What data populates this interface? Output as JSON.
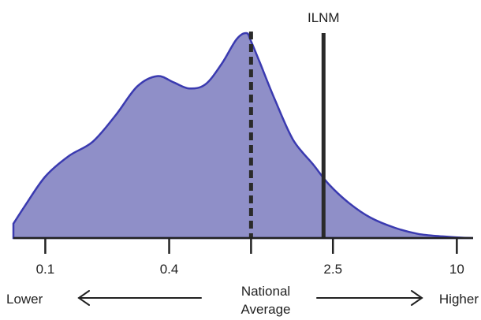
{
  "chart_data": {
    "type": "area",
    "title": "",
    "xlabel": "",
    "ylabel": "",
    "x_scale": "log",
    "xlim": [
      0.07,
      12
    ],
    "ylim": [
      0,
      1
    ],
    "grid": false,
    "ticks": [
      {
        "value": 0.1,
        "label": "0.1"
      },
      {
        "value": 0.4,
        "label": "0.4"
      },
      {
        "value": 1,
        "label": ""
      },
      {
        "value": 2.5,
        "label": "2.5"
      },
      {
        "value": 10,
        "label": "10"
      }
    ],
    "density": {
      "x": [
        0.07,
        0.08,
        0.1,
        0.13,
        0.17,
        0.22,
        0.28,
        0.35,
        0.42,
        0.5,
        0.6,
        0.72,
        0.85,
        0.95,
        1.0,
        1.1,
        1.3,
        1.6,
        2.0,
        2.4,
        3.0,
        3.8,
        5.0,
        6.5,
        8.5,
        10.5,
        12
      ],
      "y": [
        0.07,
        0.16,
        0.3,
        0.4,
        0.47,
        0.6,
        0.74,
        0.79,
        0.76,
        0.73,
        0.75,
        0.85,
        0.97,
        1.0,
        0.96,
        0.86,
        0.68,
        0.48,
        0.36,
        0.26,
        0.17,
        0.1,
        0.05,
        0.02,
        0.008,
        0.002,
        0.0
      ]
    },
    "reference_lines": [
      {
        "x": 1,
        "style": "dashed",
        "label": ""
      },
      {
        "x": 2.25,
        "style": "solid",
        "label": "ILNM"
      }
    ],
    "fill_color": "#8f8fc8",
    "line_color": "#3a3ab0",
    "reference_color": "#2a2a2a",
    "annotations": {
      "left": "Lower",
      "center_line1": "National",
      "center_line2": "Average",
      "right": "Higher"
    }
  }
}
